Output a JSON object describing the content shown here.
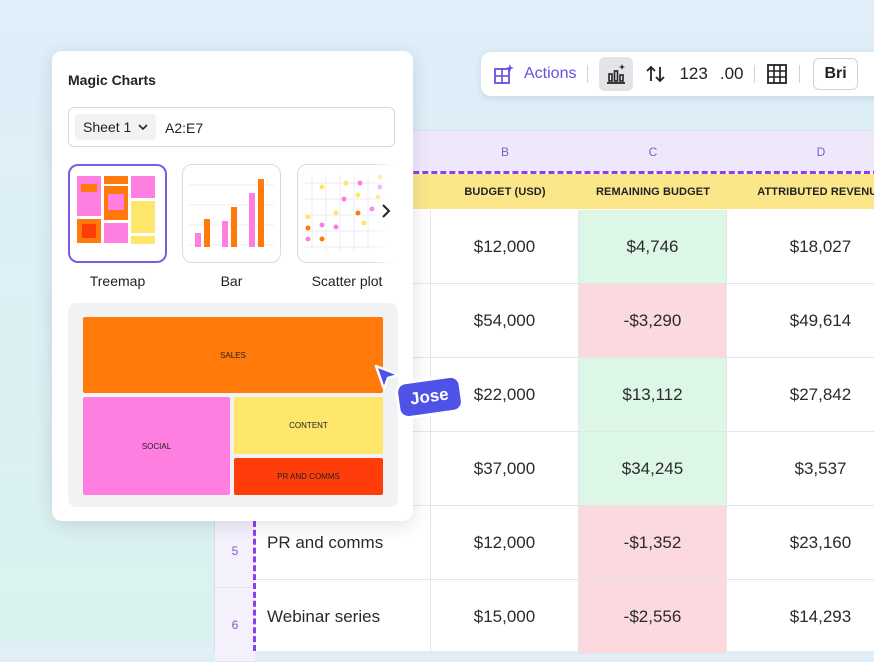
{
  "toolbar": {
    "actions_label": "Actions",
    "number_format_label": "123",
    "decimal_label": ".00",
    "font_label": "Bri"
  },
  "sheet": {
    "columns": [
      "B",
      "C",
      "D"
    ],
    "headers": [
      "BUDGET (USD)",
      "REMAINING BUDGET",
      "ATTRIBUTED REVENUE"
    ],
    "rows": [
      {
        "num": "",
        "name": "",
        "budget": "$12,000",
        "remaining": "$4,746",
        "revenue": "$18,027",
        "status": "positive"
      },
      {
        "num": "",
        "name": "",
        "budget": "$54,000",
        "remaining": "-$3,290",
        "revenue": "$49,614",
        "status": "negative"
      },
      {
        "num": "",
        "name": "",
        "budget": "$22,000",
        "remaining": "$13,112",
        "revenue": "$27,842",
        "status": "positive"
      },
      {
        "num": "",
        "name": "",
        "budget": "$37,000",
        "remaining": "$34,245",
        "revenue": "$3,537",
        "status": "positive"
      },
      {
        "num": "5",
        "name": "PR and comms",
        "budget": "$12,000",
        "remaining": "-$1,352",
        "revenue": "$23,160",
        "status": "negative"
      },
      {
        "num": "6",
        "name": "Webinar series",
        "budget": "$15,000",
        "remaining": "-$2,556",
        "revenue": "$14,293",
        "status": "negative"
      }
    ]
  },
  "panel": {
    "title": "Magic Charts",
    "sheet_select": "Sheet 1",
    "range": "A2:E7",
    "chart_types": [
      "Treemap",
      "Bar",
      "Scatter plot"
    ],
    "selected_type": "Treemap"
  },
  "preview": {
    "segments": [
      {
        "label": "SALES",
        "color": "#ff7a0a"
      },
      {
        "label": "SOCIAL",
        "color": "#ff7fe0"
      },
      {
        "label": "CONTENT",
        "color": "#fde66a"
      },
      {
        "label": "PR AND COMMS",
        "color": "#ff3d0a"
      }
    ]
  },
  "collaborator": {
    "name": "Jose",
    "color": "#4e52e6"
  },
  "colors": {
    "accent": "#7c5ce6",
    "header_yellow": "#fbe78a",
    "positive_fill": "#dcf7e6",
    "negative_fill": "#fcd9de"
  }
}
